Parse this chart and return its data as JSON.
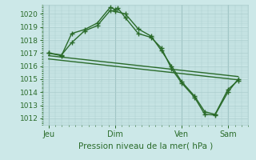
{
  "xlabel": "Pression niveau de la mer( hPa )",
  "bg_color": "#cce8e8",
  "grid_color": "#aacccc",
  "line_color": "#2a6b2a",
  "ylim": [
    1011.5,
    1020.7
  ],
  "yticks": [
    1012,
    1013,
    1014,
    1015,
    1016,
    1017,
    1018,
    1019,
    1020
  ],
  "xtick_labels": [
    "Jeu",
    "Dim",
    "Ven",
    "Sam"
  ],
  "xtick_positions": [
    0,
    26,
    52,
    70
  ],
  "xlim": [
    -2,
    78
  ],
  "series1": {
    "x": [
      0,
      5,
      9,
      14,
      19,
      24,
      26,
      27,
      30,
      35,
      40,
      44,
      48,
      52,
      57,
      61,
      65,
      70,
      74
    ],
    "y": [
      1017.0,
      1016.8,
      1018.5,
      1018.8,
      1019.3,
      1020.5,
      1020.35,
      1020.45,
      1019.7,
      1018.5,
      1018.2,
      1017.4,
      1015.8,
      1014.7,
      1013.6,
      1012.3,
      1012.25,
      1014.0,
      1015.0
    ]
  },
  "series2": {
    "x": [
      0,
      5,
      9,
      14,
      19,
      24,
      26,
      30,
      35,
      40,
      44,
      48,
      52,
      57,
      61,
      65,
      70,
      74
    ],
    "y": [
      1017.0,
      1016.85,
      1017.8,
      1018.7,
      1019.1,
      1020.25,
      1020.2,
      1020.0,
      1018.85,
      1018.3,
      1017.2,
      1016.0,
      1014.8,
      1013.7,
      1012.5,
      1012.3,
      1014.2,
      1014.9
    ]
  },
  "series3": {
    "x": [
      0,
      74
    ],
    "y": [
      1016.8,
      1015.2
    ]
  },
  "series4": {
    "x": [
      0,
      74
    ],
    "y": [
      1016.55,
      1014.95
    ]
  },
  "markersize": 2.5,
  "linewidth": 1.0
}
